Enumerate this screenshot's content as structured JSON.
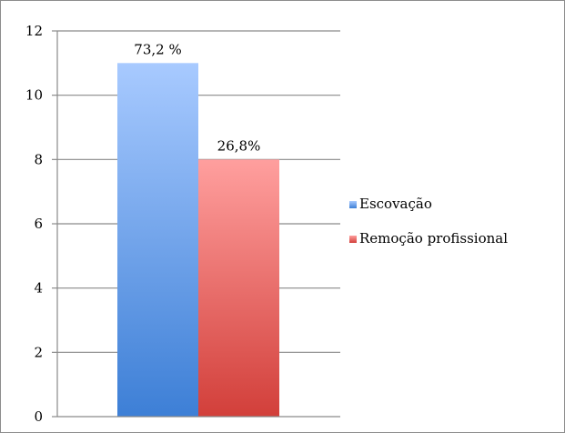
{
  "chart_data": {
    "type": "bar",
    "title": "",
    "xlabel": "",
    "ylabel": "",
    "ylim": [
      0,
      12
    ],
    "yticks": [
      0,
      2,
      4,
      6,
      8,
      10,
      12
    ],
    "grid": true,
    "legend_position": "right",
    "categories": [
      ""
    ],
    "series": [
      {
        "name": "Escovação",
        "values": [
          11
        ],
        "label": "73,2 %",
        "color_top": "#a8caff",
        "color_bottom": "#3d7fd6"
      },
      {
        "name": "Remoção profissional",
        "values": [
          8
        ],
        "label": "26,8%",
        "color_top": "#ff9f9e",
        "color_bottom": "#d23f3a"
      }
    ]
  }
}
